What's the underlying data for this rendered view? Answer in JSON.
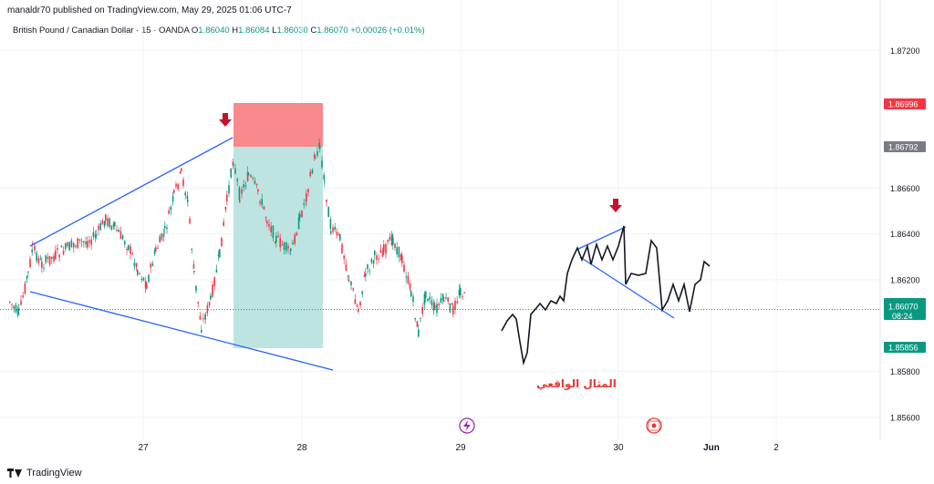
{
  "header": {
    "publisher": "manaldr70 published on TradingView.com, May 29, 2025 01:06 UTC-7"
  },
  "symbol": {
    "name": "British Pound / Canadian Dollar · 15 · OANDA",
    "o_label": "O",
    "o_value": "1.86040",
    "h_label": "H",
    "h_value": "1.86084",
    "l_label": "L",
    "l_value": "1.86030",
    "c_label": "C",
    "c_value": "1.86070",
    "change": "+0.00026 (+0.01%)"
  },
  "footer": {
    "brand": "TradingView"
  },
  "colors": {
    "up": "#089981",
    "down": "#f23645",
    "trendline": "#2962ff",
    "stop_zone": "#f77c80",
    "target_zone": "#b2dfdb",
    "arrow": "#c8102e",
    "annotation": "#e53935",
    "current_price": "#089981"
  },
  "chart_data": {
    "type": "candlestick",
    "title": "British Pound / Canadian Dollar · 15 · OANDA",
    "ylim": [
      1.855,
      1.8742
    ],
    "y_ticks": [
      "1.87200",
      "1.86600",
      "1.86400",
      "1.86200",
      "1.85800",
      "1.85600"
    ],
    "x_ticks": [
      "27",
      "28",
      "29",
      "30",
      "Jun",
      "2"
    ],
    "price_labels": [
      {
        "id": "stop",
        "value": "1.86996",
        "color": "#f23645"
      },
      {
        "id": "entry",
        "value": "1.86792",
        "color": "#787b86"
      },
      {
        "id": "current",
        "value": "1.86070",
        "sub": "08:24",
        "color": "#089981"
      },
      {
        "id": "target",
        "value": "1.85856",
        "color": "#089981"
      }
    ],
    "current_price": 1.8607,
    "annotation": "المثال الواقعي",
    "event_icons": [
      "lightning-event",
      "canada-flag-event"
    ]
  }
}
